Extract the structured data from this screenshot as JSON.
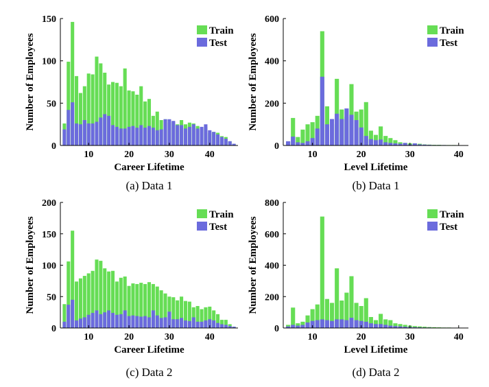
{
  "colors": {
    "train": "#66dd55",
    "test": "#6b6bdd",
    "axis": "#000000"
  },
  "legend": {
    "train_label": "Train",
    "test_label": "Test"
  },
  "chart_data": [
    {
      "type": "bar",
      "stacking": "overlay",
      "caption": "(a)  Data 1",
      "xlabel": "Career Lifetime",
      "ylabel": "Number of Employees",
      "xlim": [
        3,
        47
      ],
      "ylim": [
        0,
        150
      ],
      "xticks": [
        10,
        20,
        30,
        40
      ],
      "yticks": [
        0,
        50,
        100,
        150
      ],
      "legend_position": "top-right",
      "x": [
        4,
        5,
        6,
        7,
        8,
        9,
        10,
        11,
        12,
        13,
        14,
        15,
        16,
        17,
        18,
        19,
        20,
        21,
        22,
        23,
        24,
        25,
        26,
        27,
        28,
        29,
        30,
        31,
        32,
        33,
        34,
        35,
        36,
        37,
        38,
        39,
        40,
        41,
        42,
        43,
        44,
        45,
        46
      ],
      "series": [
        {
          "name": "Train",
          "values": [
            26,
            99,
            146,
            82,
            62,
            70,
            85,
            84,
            105,
            97,
            86,
            72,
            75,
            74,
            70,
            91,
            65,
            64,
            60,
            70,
            52,
            55,
            35,
            40,
            30,
            31,
            27,
            28,
            25,
            30,
            25,
            27,
            26,
            23,
            20,
            22,
            15,
            16,
            15,
            11,
            10,
            5,
            2
          ]
        },
        {
          "name": "Test",
          "values": [
            19,
            42,
            51,
            26,
            25,
            30,
            26,
            26,
            28,
            33,
            37,
            35,
            24,
            22,
            20,
            20,
            22,
            23,
            21,
            24,
            21,
            23,
            21,
            18,
            19,
            31,
            31,
            29,
            24,
            24,
            20,
            22,
            25,
            20,
            22,
            25,
            18,
            16,
            13,
            10,
            8,
            5,
            2
          ]
        }
      ]
    },
    {
      "type": "bar",
      "stacking": "overlay",
      "caption": "(b)  Data 1",
      "xlabel": "Level Lifetime",
      "ylabel": "Number of Employees",
      "xlim": [
        4,
        42
      ],
      "ylim": [
        0,
        600
      ],
      "xticks": [
        10,
        20,
        30,
        40
      ],
      "yticks": [
        0,
        200,
        400,
        600
      ],
      "legend_position": "top-right",
      "x": [
        5,
        6,
        7,
        8,
        9,
        10,
        11,
        12,
        13,
        14,
        15,
        16,
        17,
        18,
        19,
        20,
        21,
        22,
        23,
        24,
        25,
        26,
        27,
        28,
        29,
        30,
        31,
        32,
        33,
        34,
        35,
        36,
        37,
        38,
        39,
        40,
        41
      ],
      "series": [
        {
          "name": "Train",
          "values": [
            15,
            130,
            40,
            75,
            100,
            110,
            140,
            540,
            185,
            100,
            315,
            170,
            135,
            290,
            160,
            170,
            205,
            70,
            50,
            90,
            45,
            35,
            25,
            15,
            12,
            10,
            10,
            8,
            5,
            4,
            3,
            3,
            2,
            2,
            2,
            1,
            1
          ]
        },
        {
          "name": "Test",
          "values": [
            20,
            42,
            15,
            12,
            20,
            35,
            80,
            325,
            100,
            125,
            150,
            125,
            175,
            145,
            120,
            85,
            45,
            30,
            25,
            28,
            15,
            12,
            10,
            8,
            12,
            5,
            10,
            5,
            4,
            3,
            2,
            2,
            2,
            1,
            1,
            1,
            1
          ]
        }
      ]
    },
    {
      "type": "bar",
      "stacking": "overlay",
      "caption": "(c)  Data 2",
      "xlabel": "Career Lifetime",
      "ylabel": "Number of Employees",
      "xlim": [
        3,
        47
      ],
      "ylim": [
        0,
        200
      ],
      "xticks": [
        10,
        20,
        30,
        40
      ],
      "yticks": [
        0,
        50,
        100,
        150,
        200
      ],
      "legend_position": "top-right",
      "x": [
        4,
        5,
        6,
        7,
        8,
        9,
        10,
        11,
        12,
        13,
        14,
        15,
        16,
        17,
        18,
        19,
        20,
        21,
        22,
        23,
        24,
        25,
        26,
        27,
        28,
        29,
        30,
        31,
        32,
        33,
        34,
        35,
        36,
        37,
        38,
        39,
        40,
        41,
        42,
        43,
        44,
        45,
        46
      ],
      "series": [
        {
          "name": "Train",
          "values": [
            38,
            106,
            155,
            74,
            79,
            83,
            87,
            91,
            109,
            107,
            95,
            90,
            91,
            74,
            80,
            82,
            67,
            71,
            70,
            72,
            70,
            73,
            70,
            66,
            60,
            55,
            50,
            49,
            44,
            50,
            43,
            42,
            33,
            35,
            30,
            33,
            34,
            28,
            22,
            13,
            13,
            6,
            2
          ]
        },
        {
          "name": "Test",
          "values": [
            10,
            37,
            45,
            12,
            15,
            17,
            21,
            24,
            28,
            22,
            25,
            28,
            24,
            21,
            22,
            28,
            19,
            20,
            19,
            18,
            19,
            17,
            28,
            20,
            16,
            17,
            26,
            14,
            14,
            16,
            12,
            11,
            17,
            10,
            10,
            12,
            14,
            12,
            8,
            6,
            5,
            3,
            2
          ]
        }
      ]
    },
    {
      "type": "bar",
      "stacking": "overlay",
      "caption": "(d)  Data 2",
      "xlabel": "Level Lifetime",
      "ylabel": "Number of Employees",
      "xlim": [
        4,
        42
      ],
      "ylim": [
        0,
        800
      ],
      "xticks": [
        10,
        20,
        30,
        40
      ],
      "yticks": [
        0,
        200,
        400,
        600,
        800
      ],
      "legend_position": "top-right",
      "x": [
        5,
        6,
        7,
        8,
        9,
        10,
        11,
        12,
        13,
        14,
        15,
        16,
        17,
        18,
        19,
        20,
        21,
        22,
        23,
        24,
        25,
        26,
        27,
        28,
        29,
        30,
        31,
        32,
        33,
        34,
        35,
        36,
        37,
        38,
        39,
        40,
        41
      ],
      "series": [
        {
          "name": "Train",
          "values": [
            20,
            130,
            30,
            40,
            80,
            120,
            150,
            710,
            185,
            160,
            380,
            175,
            225,
            330,
            160,
            140,
            190,
            70,
            50,
            90,
            55,
            50,
            30,
            25,
            20,
            15,
            12,
            10,
            8,
            6,
            5,
            4,
            3,
            3,
            2,
            2,
            1
          ]
        },
        {
          "name": "Test",
          "values": [
            10,
            20,
            15,
            20,
            35,
            45,
            50,
            55,
            50,
            45,
            55,
            55,
            50,
            65,
            50,
            45,
            40,
            30,
            25,
            25,
            20,
            15,
            12,
            10,
            8,
            6,
            5,
            4,
            3,
            3,
            2,
            2,
            2,
            1,
            1,
            1,
            1
          ]
        }
      ]
    }
  ]
}
